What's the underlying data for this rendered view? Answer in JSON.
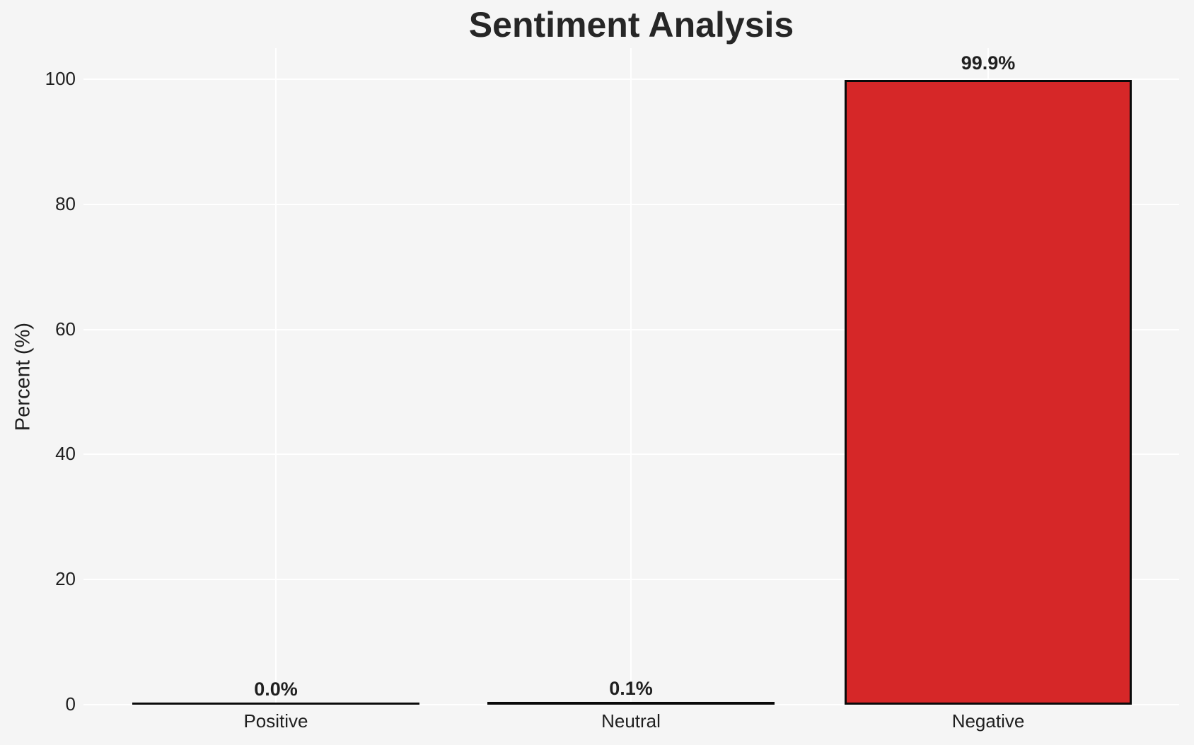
{
  "chart_data": {
    "type": "bar",
    "title": "Sentiment Analysis",
    "xlabel": "",
    "ylabel": "Percent (%)",
    "categories": [
      "Positive",
      "Neutral",
      "Negative"
    ],
    "values": [
      0.0,
      0.1,
      99.9
    ],
    "value_labels": [
      "0.0%",
      "0.1%",
      "99.9%"
    ],
    "yticks": [
      0,
      20,
      40,
      60,
      80,
      100
    ],
    "ylim": [
      0,
      100
    ],
    "grid": "on",
    "legend": "none",
    "colors": {
      "background": "#f5f5f5",
      "gridline": "#ffffff",
      "bar_fill": "#d62728",
      "bar_edge": "#0a0a0a",
      "text": "#1f1f1f",
      "title_text": "#262626"
    }
  }
}
